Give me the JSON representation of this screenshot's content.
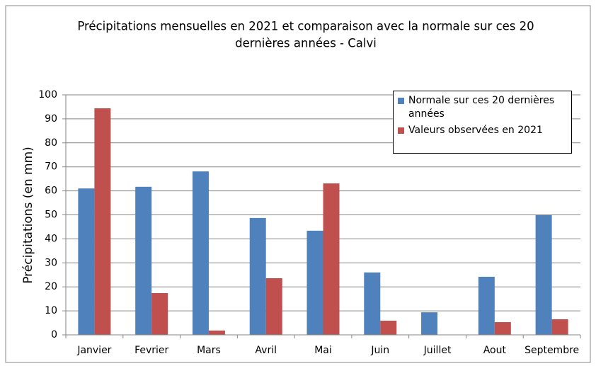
{
  "chart_data": {
    "type": "bar",
    "title": [
      "Précipitations mensuelles en 2021 et comparaison avec la normale sur ces 20",
      "dernières années - Calvi"
    ],
    "y_label": "Précipitations  (en mm)",
    "categories": [
      "Janvier",
      "Fevrier",
      "Mars",
      "Avril",
      "Mai",
      "Juin",
      "Juillet",
      "Aout",
      "Septembre"
    ],
    "series": [
      {
        "name": "Normale sur ces 20 dernières années",
        "color": "#4f81bd",
        "values": [
          61,
          61.7,
          68.1,
          48.7,
          43.4,
          26,
          9.4,
          24.2,
          49.9
        ]
      },
      {
        "name": "Valeurs observées en 2021",
        "color": "#c0504d",
        "values": [
          94.4,
          17.4,
          1.8,
          23.6,
          63.1,
          5.9,
          null,
          5.3,
          6.5
        ]
      }
    ],
    "ylim": [
      0,
      100
    ],
    "yticks": [
      0,
      10,
      20,
      30,
      40,
      50,
      60,
      70,
      80,
      90,
      100
    ],
    "grid": true,
    "legend": "top-right"
  }
}
